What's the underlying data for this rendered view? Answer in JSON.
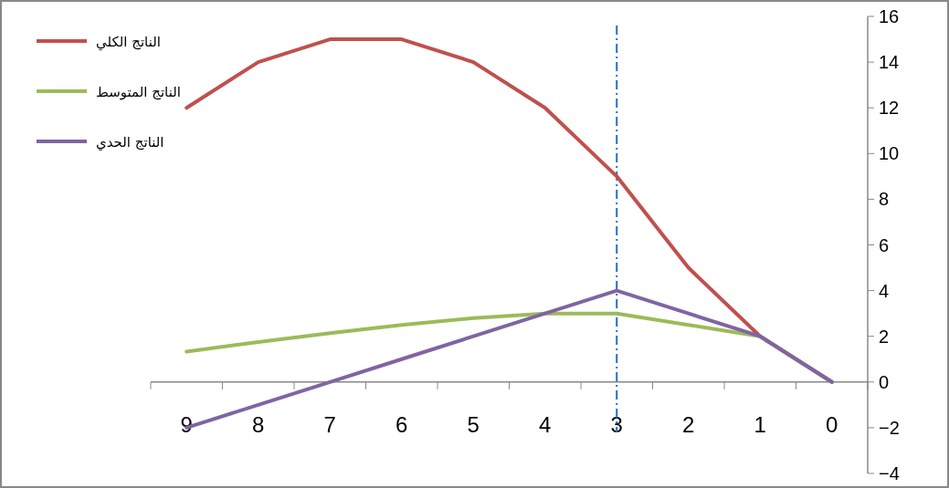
{
  "chart_data": {
    "type": "line",
    "categories": [
      "9",
      "8",
      "7",
      "6",
      "5",
      "4",
      "3",
      "2",
      "1",
      "0"
    ],
    "series": [
      {
        "name": "الناتج الكلي",
        "color": "#c0504d",
        "values": [
          12,
          14,
          15,
          15,
          14,
          12,
          9,
          5,
          2,
          0
        ]
      },
      {
        "name": "الناتج المتوسط",
        "color": "#9bbb59",
        "values": [
          1.33,
          1.75,
          2.14,
          2.5,
          2.8,
          3,
          3,
          2.5,
          2,
          0
        ]
      },
      {
        "name": "الناتج الحدي",
        "color": "#8064a2",
        "values": [
          -2,
          -1,
          0,
          1,
          2,
          3,
          4,
          3,
          2,
          0
        ]
      }
    ],
    "ylim": [
      -4,
      16
    ],
    "yticks": [
      -4,
      -2,
      0,
      2,
      4,
      6,
      8,
      10,
      12,
      14,
      16
    ],
    "ref_lines": [
      {
        "axis": "x",
        "value": "3",
        "color": "#1f6fc5",
        "line_style": "dashdot"
      }
    ],
    "grid": false,
    "legend": "top left",
    "marker": "none",
    "line_style": "solid"
  }
}
